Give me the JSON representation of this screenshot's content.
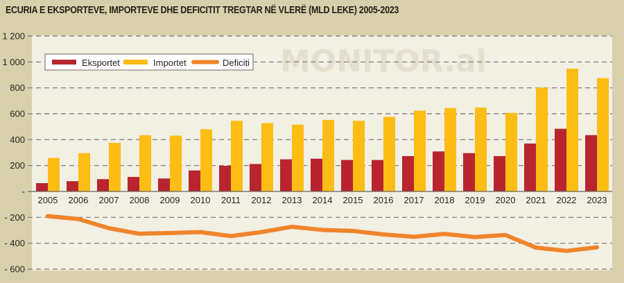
{
  "title": "ECURIA E EKSPORTEVE, IMPORTEVE DHE DEFICITIT TREGTAR NË VLERË (MLD LEKE) 2005-2023",
  "watermark": "MONITOR.al",
  "colors": {
    "background": "#d8d0ab",
    "plot_bg": "#f2efe3",
    "eksportet": "#b8252f",
    "importet": "#fdbd15",
    "deficiti": "#f0842a",
    "grid": "#7a7570"
  },
  "chart_data": {
    "type": "bar",
    "title": "ECURIA E EKSPORTEVE, IMPORTEVE DHE DEFICITIT TREGTAR NË VLERË (MLD LEKE) 2005-2023",
    "xlabel": "",
    "ylabel": "",
    "ylim": [
      -600,
      1200
    ],
    "grid": true,
    "legend_position": "top-left",
    "y_ticks": [
      1200,
      1000,
      800,
      600,
      400,
      200,
      0,
      -200,
      -400,
      -600
    ],
    "y_tick_labels": [
      "1 200",
      "1 000",
      "800",
      "600",
      "400",
      "200",
      "-",
      "- 200",
      "- 400",
      "- 600"
    ],
    "categories": [
      "2005",
      "2006",
      "2007",
      "2008",
      "2009",
      "2010",
      "2011",
      "2012",
      "2013",
      "2014",
      "2015",
      "2016",
      "2017",
      "2018",
      "2019",
      "2020",
      "2021",
      "2022",
      "2023"
    ],
    "series": [
      {
        "name": "Eksportet",
        "type": "bar",
        "color": "#b8252f",
        "values": [
          64,
          79,
          95,
          112,
          100,
          162,
          198,
          212,
          248,
          253,
          243,
          243,
          273,
          309,
          296,
          273,
          370,
          484,
          435
        ]
      },
      {
        "name": "Importet",
        "type": "bar",
        "color": "#fdbd15",
        "values": [
          259,
          296,
          375,
          434,
          431,
          480,
          546,
          528,
          516,
          552,
          546,
          576,
          624,
          644,
          648,
          607,
          801,
          948,
          875
        ]
      },
      {
        "name": "Deficiti",
        "type": "line",
        "color": "#f0842a",
        "values": [
          -191,
          -213,
          -284,
          -327,
          -321,
          -314,
          -345,
          -314,
          -273,
          -297,
          -305,
          -332,
          -350,
          -328,
          -352,
          -336,
          -434,
          -459,
          -432
        ]
      }
    ]
  }
}
